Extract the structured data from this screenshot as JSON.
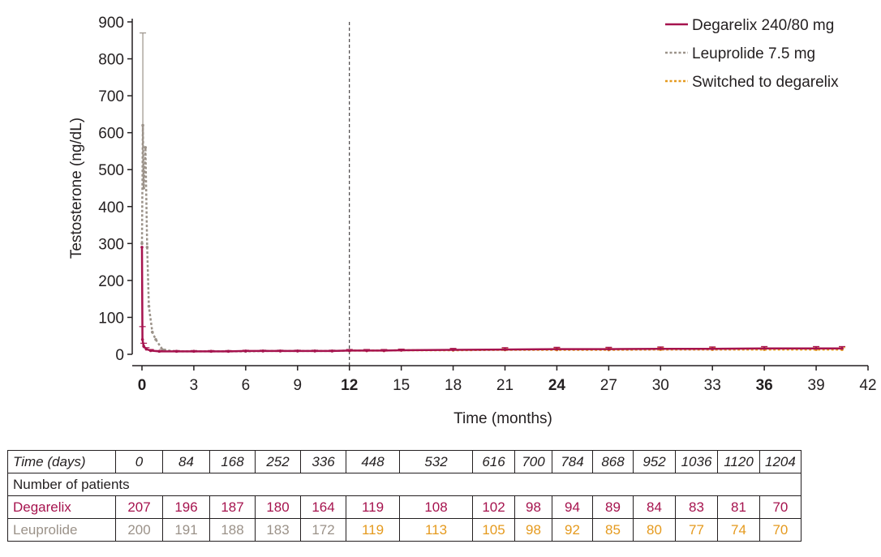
{
  "chart_data": {
    "type": "line",
    "xlabel": "Time (months)",
    "ylabel": "Testosterone (ng/dL)",
    "xlim": [
      0,
      42
    ],
    "ylim": [
      0,
      900
    ],
    "x_ticks": [
      0,
      3,
      6,
      9,
      12,
      15,
      18,
      21,
      24,
      27,
      30,
      33,
      36,
      39,
      42
    ],
    "x_ticks_bold": [
      0,
      12,
      24,
      36
    ],
    "y_ticks": [
      0,
      100,
      200,
      300,
      400,
      500,
      600,
      700,
      800,
      900
    ],
    "reference_line_x": 12,
    "legend_position": "top-right",
    "series": [
      {
        "name": "Degarelix 240/80 mg",
        "color": "#a6134e",
        "style": "solid",
        "x": [
          0,
          0.03,
          0.1,
          0.25,
          0.5,
          1,
          2,
          3,
          4,
          5,
          6,
          7,
          8,
          9,
          10,
          11,
          12,
          13,
          14,
          15,
          18,
          21,
          24,
          27,
          30,
          33,
          36,
          39,
          40.5
        ],
        "y": [
          290,
          40,
          22,
          14,
          10,
          8,
          8,
          8,
          8,
          8,
          9,
          9,
          9,
          9,
          9,
          9,
          10,
          10,
          10,
          11,
          12,
          13,
          14,
          14,
          15,
          15,
          16,
          16,
          16
        ],
        "err": [
          0,
          35,
          8,
          4,
          3,
          2,
          2,
          2,
          2,
          2,
          2,
          2,
          2,
          2,
          2,
          2,
          3,
          3,
          3,
          3,
          4,
          5,
          5,
          5,
          5,
          5,
          5,
          5,
          5
        ]
      },
      {
        "name": "Leuprolide 7.5 mg",
        "color": "#9b9289",
        "style": "dotted",
        "x": [
          0,
          0.05,
          0.1,
          0.2,
          0.3,
          0.4,
          0.6,
          0.8,
          1.2,
          2,
          3,
          4,
          5,
          6,
          7,
          8,
          9,
          10,
          11,
          12
        ],
        "y": [
          300,
          620,
          450,
          560,
          290,
          130,
          60,
          40,
          12,
          8,
          8,
          8,
          8,
          8,
          9,
          9,
          9,
          9,
          9,
          10
        ],
        "err": [
          0,
          250,
          0,
          0,
          0,
          0,
          0,
          0,
          2,
          2,
          2,
          2,
          2,
          2,
          2,
          2,
          2,
          2,
          2,
          3
        ]
      },
      {
        "name": "Switched to degarelix",
        "color": "#e59a1e",
        "style": "dotted",
        "x": [
          12,
          13,
          14,
          15,
          18,
          21,
          24,
          27,
          30,
          33,
          36,
          39,
          40.5
        ],
        "y": [
          10,
          10,
          10,
          11,
          11,
          12,
          12,
          12,
          13,
          13,
          13,
          13,
          13
        ],
        "err": [
          3,
          3,
          3,
          3,
          4,
          5,
          5,
          5,
          5,
          5,
          5,
          5,
          5
        ]
      }
    ]
  },
  "table": {
    "time_label": "Time (days)",
    "days": [
      "0",
      "84",
      "168",
      "252",
      "336",
      "448",
      "532",
      "616",
      "700",
      "784",
      "868",
      "952",
      "1036",
      "1120",
      "1204"
    ],
    "section_label": "Number of patients",
    "degarelix": {
      "label": "Degarelix",
      "color": "#a6134e",
      "values": [
        "207",
        "196",
        "187",
        "180",
        "164",
        "119",
        "108",
        "102",
        "98",
        "94",
        "89",
        "84",
        "83",
        "81",
        "70"
      ]
    },
    "leuprolide": {
      "label": "Leuprolide",
      "color": "#9b9289",
      "switched_color": "#e59a1e",
      "switched_from_index": 5,
      "values": [
        "200",
        "191",
        "188",
        "183",
        "172",
        "119",
        "113",
        "105",
        "98",
        "92",
        "85",
        "80",
        "77",
        "74",
        "70"
      ]
    }
  }
}
